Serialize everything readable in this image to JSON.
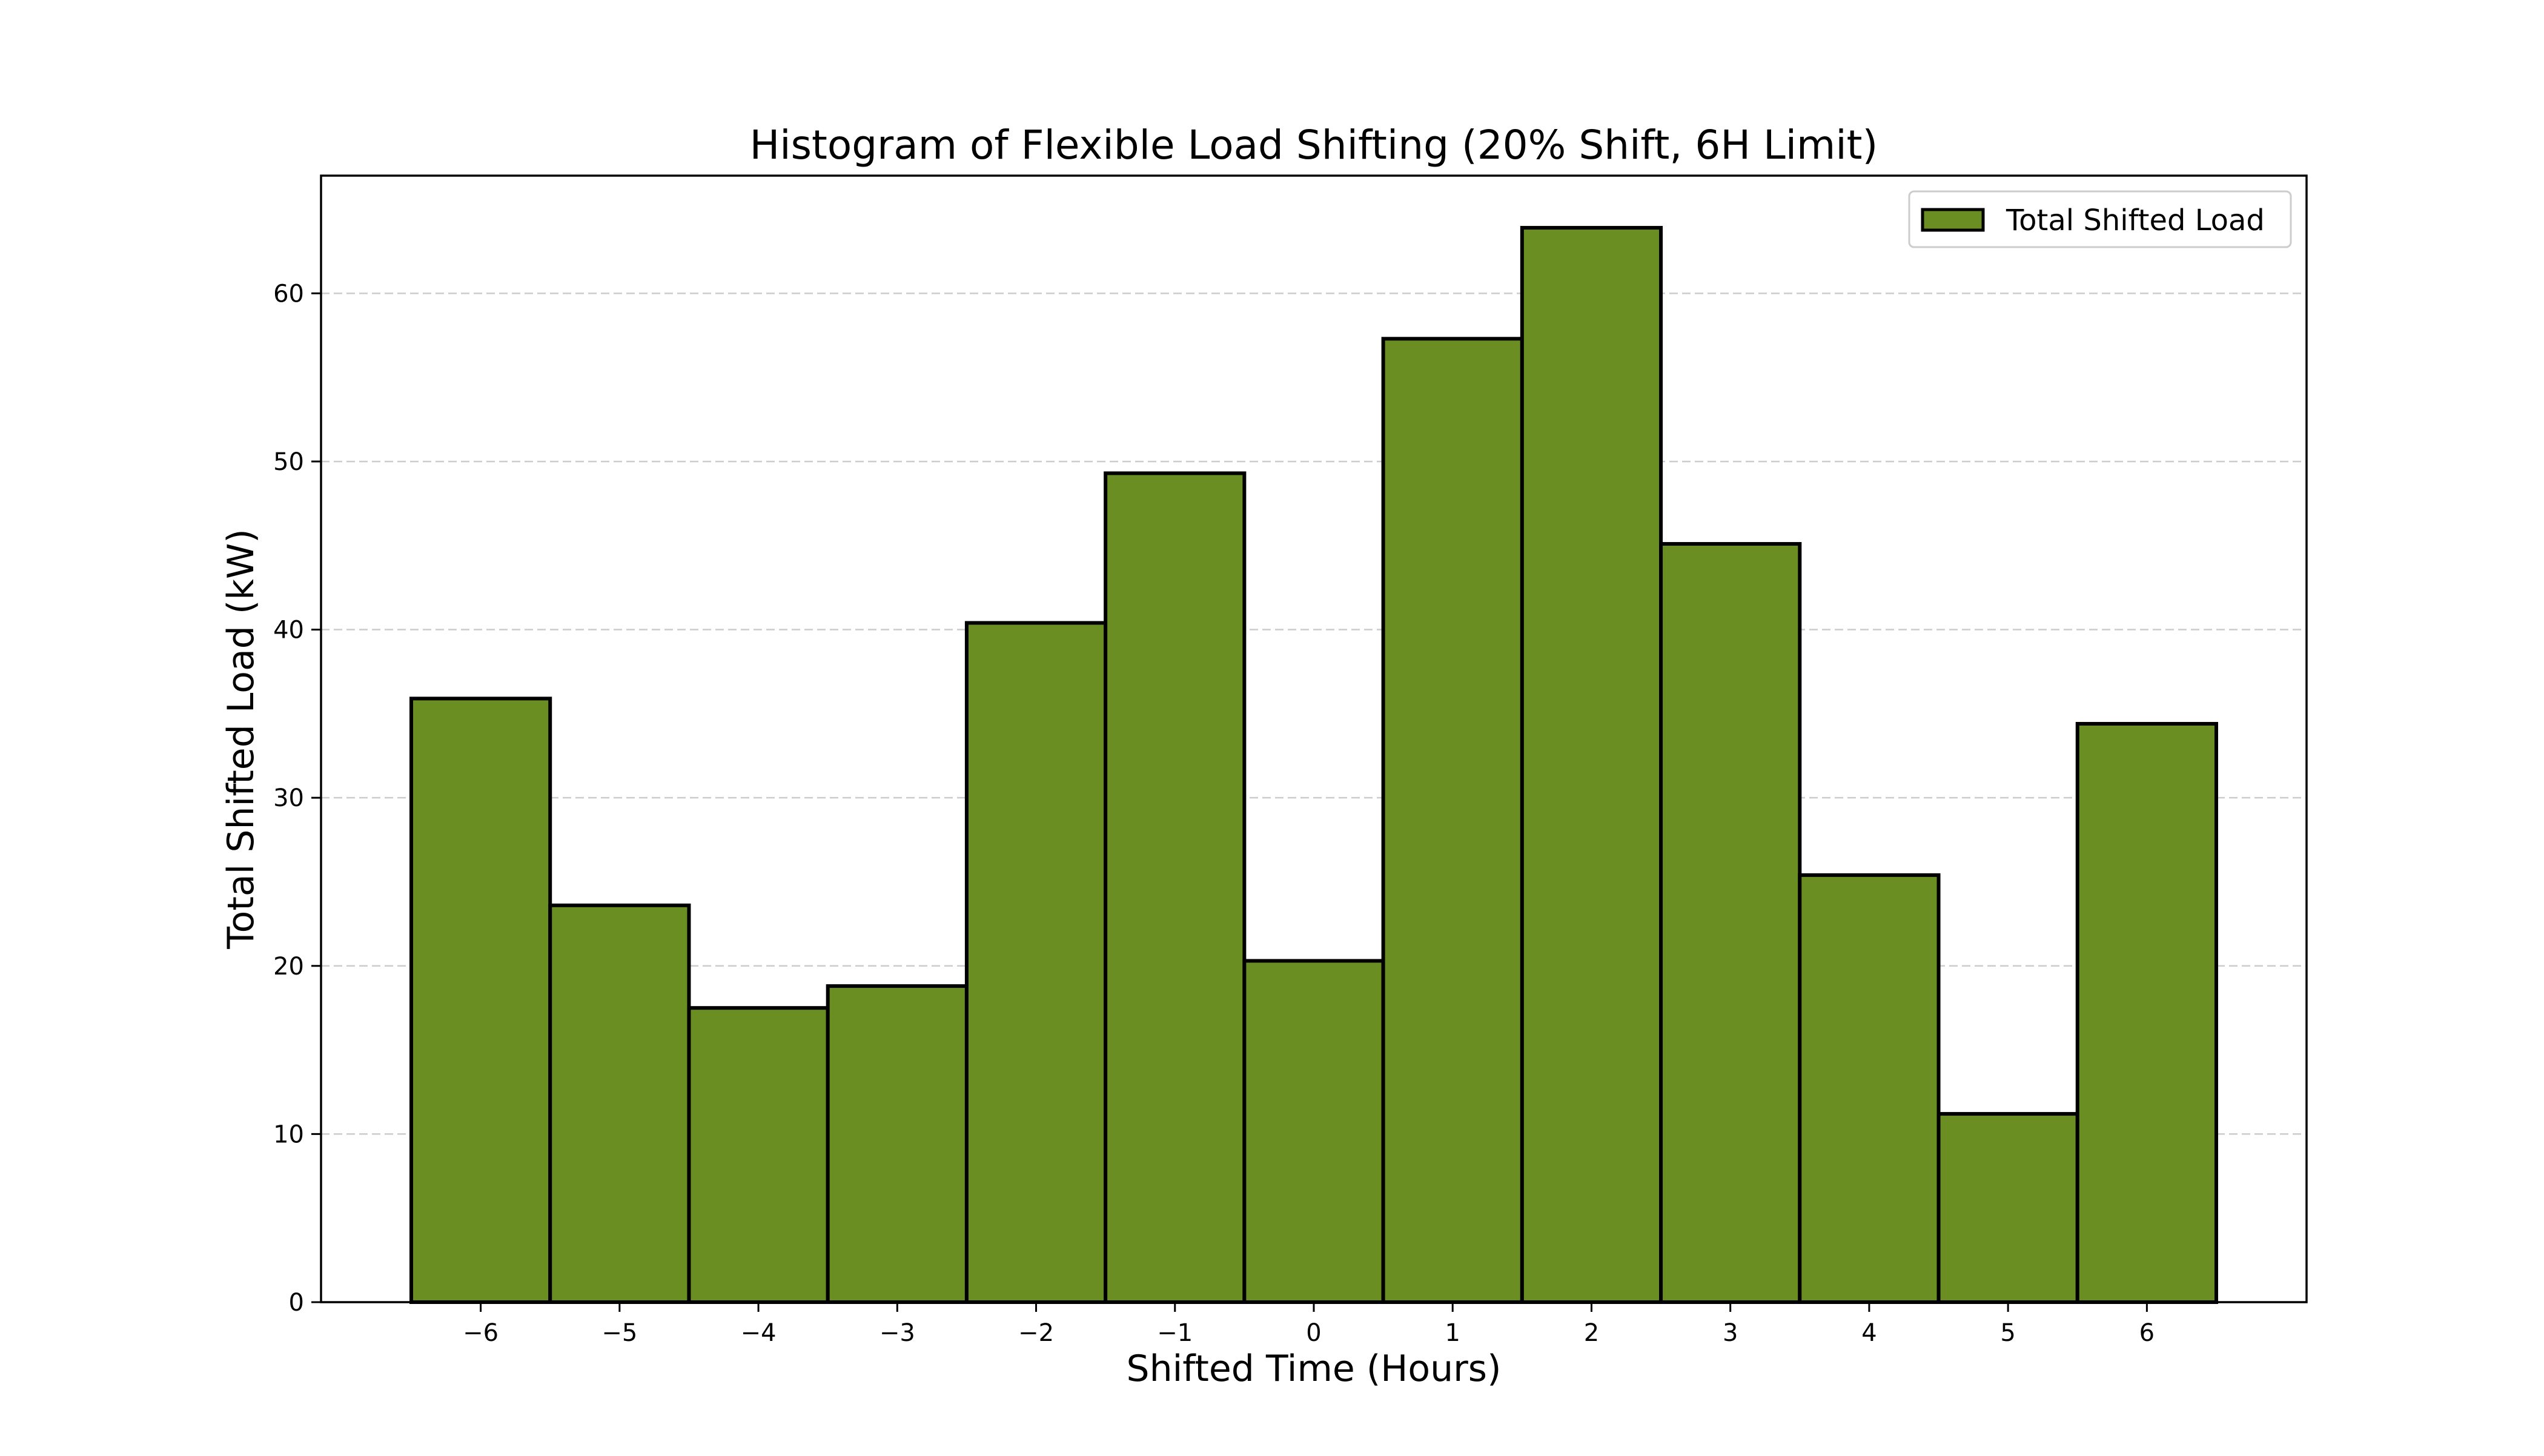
{
  "chart_data": {
    "type": "bar",
    "title": "Histogram of Flexible Load Shifting (20% Shift, 6H Limit)",
    "xlabel": "Shifted Time (Hours)",
    "ylabel": "Total Shifted Load (kW)",
    "categories": [
      -6,
      -5,
      -4,
      -3,
      -2,
      -1,
      0,
      1,
      2,
      3,
      4,
      5,
      6
    ],
    "x_tick_labels": [
      "−6",
      "−5",
      "−4",
      "−3",
      "−2",
      "−1",
      "0",
      "1",
      "2",
      "3",
      "4",
      "5",
      "6"
    ],
    "series": [
      {
        "name": "Total Shifted Load",
        "values": [
          35.9,
          23.6,
          17.5,
          18.8,
          40.4,
          49.3,
          20.3,
          57.3,
          63.9,
          45.1,
          25.4,
          11.2,
          34.4
        ]
      }
    ],
    "bar_color": "#6b8e23",
    "edge_color": "#000000",
    "xlim": [
      -7.15,
      7.15
    ],
    "ylim": [
      0,
      67
    ],
    "y_ticks": [
      0,
      10,
      20,
      30,
      40,
      50,
      60
    ],
    "y_tick_labels": [
      "0",
      "10",
      "20",
      "30",
      "40",
      "50",
      "60"
    ],
    "grid": "horizontal dashed",
    "legend_position": "top-right"
  }
}
